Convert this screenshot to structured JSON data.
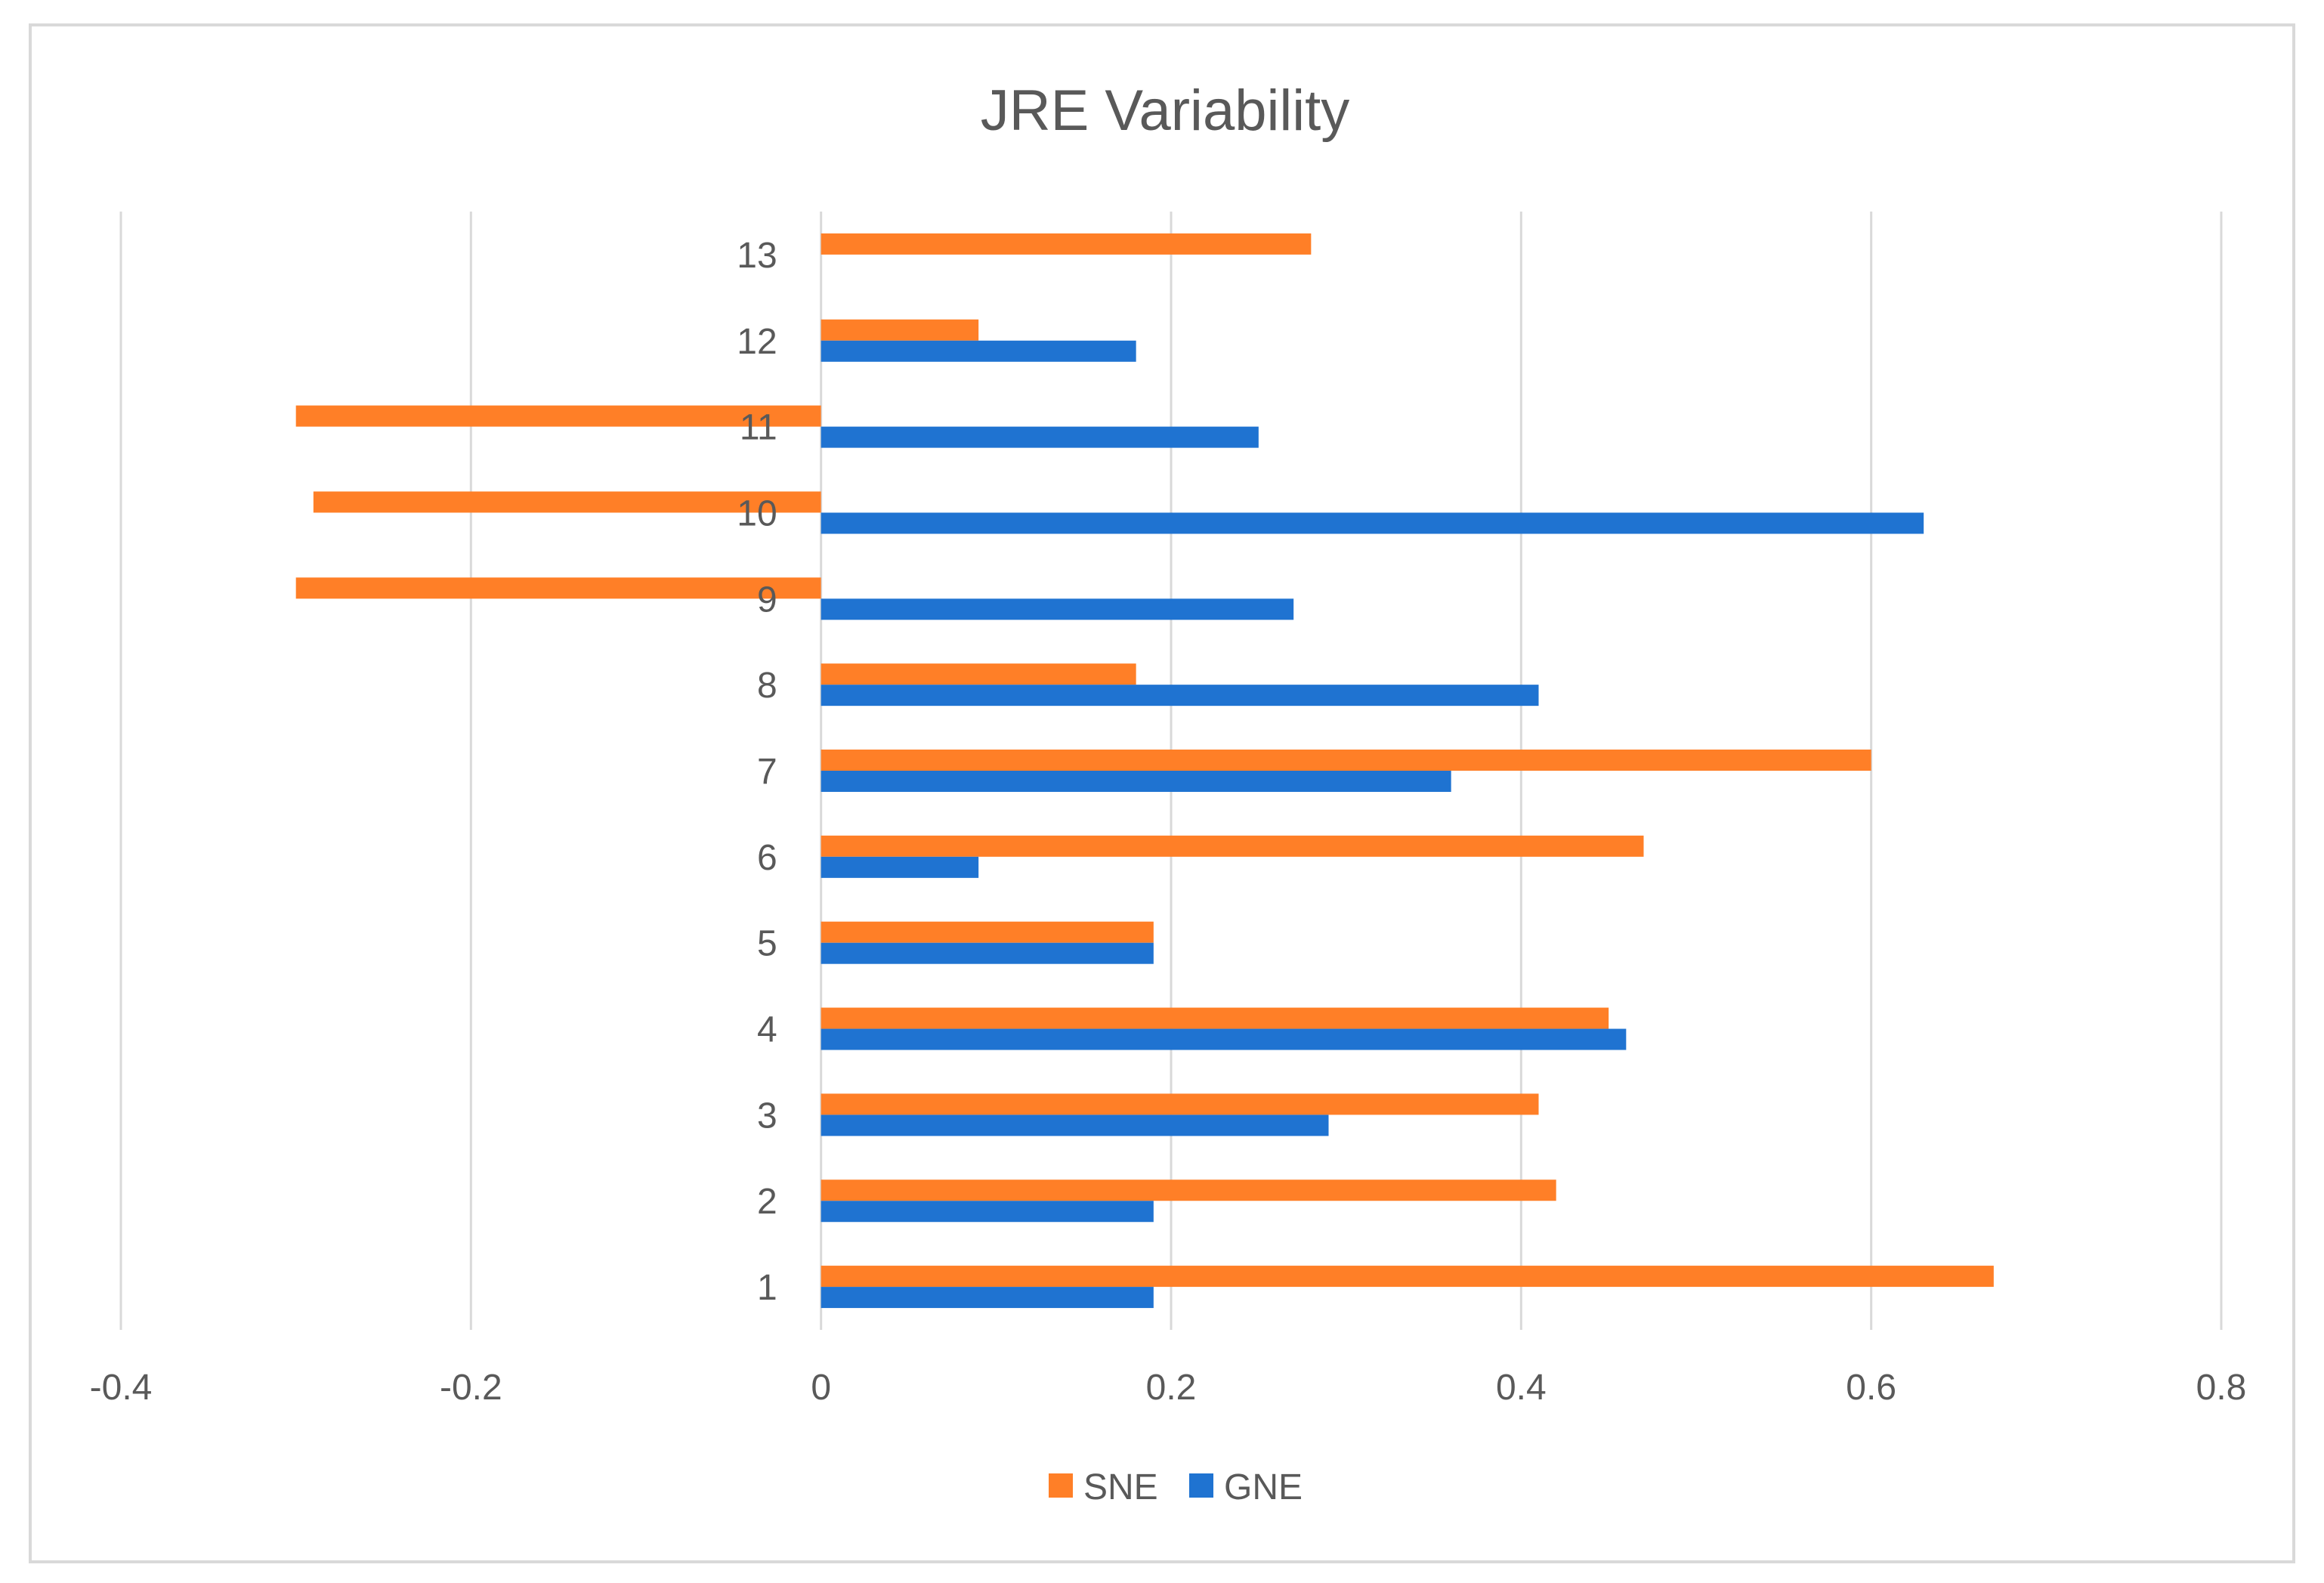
{
  "chart_data": {
    "type": "bar",
    "orientation": "horizontal",
    "title": "JRE Variability",
    "categories": [
      "1",
      "2",
      "3",
      "4",
      "5",
      "6",
      "7",
      "8",
      "9",
      "10",
      "11",
      "12",
      "13"
    ],
    "series": [
      {
        "name": "SNE",
        "color": "#FF7F27",
        "values": [
          0.67,
          0.42,
          0.41,
          0.45,
          0.19,
          0.47,
          0.6,
          0.18,
          -0.3,
          -0.29,
          -0.3,
          0.09,
          0.28
        ]
      },
      {
        "name": "GNE",
        "color": "#1F73D1",
        "values": [
          0.19,
          0.19,
          0.29,
          0.46,
          0.19,
          0.09,
          0.36,
          0.41,
          0.27,
          0.63,
          0.25,
          0.18,
          null
        ]
      }
    ],
    "xlim": [
      -0.4,
      0.8
    ],
    "xticks": [
      "-0.4",
      "-0.2",
      "0",
      "0.2",
      "0.4",
      "0.6",
      "0.8"
    ],
    "xtick_values": [
      -0.4,
      -0.2,
      0,
      0.2,
      0.4,
      0.6,
      0.8
    ],
    "xlabel": "",
    "ylabel": "",
    "grid": "vertical",
    "legend": "bottom-center"
  },
  "colors": {
    "border": "#D9D9D9",
    "grid": "#D9D9D9",
    "text": "#595959"
  }
}
